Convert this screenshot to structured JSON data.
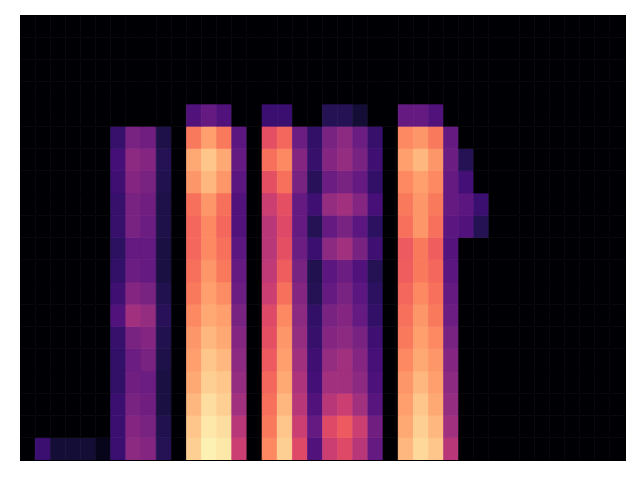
{
  "chart_data": {
    "type": "heatmap",
    "tick_labels": false,
    "color": "magma",
    "xlim": [
      0,
      40
    ],
    "ylim": [
      0,
      20
    ],
    "zlim": [
      0,
      1
    ],
    "z": [
      [
        0,
        0.2,
        0.1,
        0.1,
        0.1,
        0.05,
        0.2,
        0.4,
        0.38,
        0.15,
        0,
        0.9,
        0.97,
        0.95,
        0.55,
        0,
        0.75,
        0.9,
        0.6,
        0.25,
        0.55,
        0.6,
        0.5,
        0.3,
        0,
        0.85,
        0.92,
        0.88,
        0.5,
        0,
        0,
        0,
        0,
        0,
        0,
        0,
        0,
        0,
        0,
        0
      ],
      [
        0,
        0,
        0,
        0,
        0,
        0,
        0.2,
        0.38,
        0.35,
        0.14,
        0,
        0.88,
        0.95,
        0.93,
        0.5,
        0,
        0.72,
        0.88,
        0.55,
        0.3,
        0.6,
        0.65,
        0.55,
        0.33,
        0,
        0.82,
        0.9,
        0.85,
        0.45,
        0,
        0,
        0,
        0,
        0,
        0,
        0,
        0,
        0,
        0,
        0
      ],
      [
        0,
        0,
        0,
        0,
        0,
        0,
        0.2,
        0.35,
        0.33,
        0.12,
        0,
        0.85,
        0.93,
        0.9,
        0.45,
        0,
        0.7,
        0.85,
        0.5,
        0.25,
        0.5,
        0.55,
        0.45,
        0.27,
        0,
        0.8,
        0.88,
        0.82,
        0.42,
        0,
        0,
        0,
        0,
        0,
        0,
        0,
        0,
        0,
        0,
        0
      ],
      [
        0,
        0,
        0,
        0,
        0,
        0,
        0.18,
        0.33,
        0.32,
        0.12,
        0,
        0.82,
        0.9,
        0.88,
        0.42,
        0,
        0.68,
        0.82,
        0.48,
        0.22,
        0.45,
        0.45,
        0.4,
        0.24,
        0,
        0.78,
        0.85,
        0.8,
        0.4,
        0,
        0,
        0,
        0,
        0,
        0,
        0,
        0,
        0,
        0,
        0
      ],
      [
        0,
        0,
        0,
        0,
        0,
        0,
        0.18,
        0.32,
        0.35,
        0.13,
        0,
        0.8,
        0.88,
        0.85,
        0.4,
        0,
        0.65,
        0.8,
        0.45,
        0.21,
        0.42,
        0.45,
        0.38,
        0.23,
        0,
        0.75,
        0.82,
        0.78,
        0.38,
        0,
        0,
        0,
        0,
        0,
        0,
        0,
        0,
        0,
        0,
        0
      ],
      [
        0,
        0,
        0,
        0,
        0,
        0,
        0.19,
        0.35,
        0.38,
        0.14,
        0,
        0.78,
        0.85,
        0.82,
        0.38,
        0,
        0.62,
        0.78,
        0.42,
        0.19,
        0.38,
        0.4,
        0.35,
        0.21,
        0,
        0.72,
        0.8,
        0.75,
        0.35,
        0,
        0,
        0,
        0,
        0,
        0,
        0,
        0,
        0,
        0,
        0
      ],
      [
        0,
        0,
        0,
        0,
        0,
        0,
        0.25,
        0.45,
        0.42,
        0.16,
        0,
        0.75,
        0.82,
        0.8,
        0.35,
        0,
        0.6,
        0.75,
        0.4,
        0.18,
        0.35,
        0.38,
        0.3,
        0.18,
        0,
        0.7,
        0.78,
        0.72,
        0.32,
        0,
        0,
        0,
        0,
        0,
        0,
        0,
        0,
        0,
        0,
        0
      ],
      [
        0,
        0,
        0,
        0,
        0,
        0,
        0.21,
        0.38,
        0.35,
        0.14,
        0,
        0.72,
        0.8,
        0.76,
        0.32,
        0,
        0.55,
        0.7,
        0.38,
        0.15,
        0.3,
        0.35,
        0.28,
        0.17,
        0,
        0.68,
        0.75,
        0.7,
        0.3,
        0,
        0,
        0,
        0,
        0,
        0,
        0,
        0,
        0,
        0,
        0
      ],
      [
        0,
        0,
        0,
        0,
        0,
        0,
        0.18,
        0.32,
        0.3,
        0.12,
        0,
        0.7,
        0.78,
        0.72,
        0.3,
        0,
        0.52,
        0.66,
        0.35,
        0.14,
        0.28,
        0.32,
        0.25,
        0.15,
        0,
        0.66,
        0.72,
        0.68,
        0.28,
        0,
        0,
        0,
        0,
        0,
        0,
        0,
        0,
        0,
        0,
        0
      ],
      [
        0,
        0,
        0,
        0,
        0,
        0,
        0.17,
        0.3,
        0.3,
        0.12,
        0,
        0.68,
        0.75,
        0.7,
        0.28,
        0,
        0.5,
        0.62,
        0.32,
        0.2,
        0.4,
        0.45,
        0.35,
        0.21,
        0,
        0.65,
        0.72,
        0.66,
        0.26,
        0,
        0,
        0,
        0,
        0,
        0,
        0,
        0,
        0,
        0,
        0
      ],
      [
        0,
        0,
        0,
        0,
        0,
        0,
        0.19,
        0.35,
        0.32,
        0.13,
        0,
        0.68,
        0.75,
        0.68,
        0.25,
        0,
        0.5,
        0.6,
        0.3,
        0.15,
        0.3,
        0.35,
        0.28,
        0.17,
        0,
        0.7,
        0.78,
        0.7,
        0.28,
        0.25,
        0.15,
        0,
        0,
        0,
        0,
        0,
        0,
        0,
        0,
        0
      ],
      [
        0,
        0,
        0,
        0,
        0,
        0,
        0.19,
        0.35,
        0.33,
        0.13,
        0,
        0.7,
        0.78,
        0.7,
        0.25,
        0,
        0.55,
        0.62,
        0.3,
        0.21,
        0.42,
        0.45,
        0.38,
        0.23,
        0,
        0.72,
        0.78,
        0.72,
        0.3,
        0.28,
        0.2,
        0,
        0,
        0,
        0,
        0,
        0,
        0,
        0,
        0
      ],
      [
        0,
        0,
        0,
        0,
        0,
        0,
        0.21,
        0.38,
        0.35,
        0.14,
        0,
        0.78,
        0.85,
        0.78,
        0.28,
        0,
        0.62,
        0.7,
        0.35,
        0.16,
        0.32,
        0.35,
        0.3,
        0.18,
        0,
        0.75,
        0.8,
        0.75,
        0.3,
        0.22,
        0,
        0,
        0,
        0,
        0,
        0,
        0,
        0,
        0,
        0
      ],
      [
        0,
        0,
        0,
        0,
        0,
        0,
        0.22,
        0.4,
        0.38,
        0.15,
        0,
        0.82,
        0.88,
        0.82,
        0.3,
        0,
        0.7,
        0.75,
        0.38,
        0.19,
        0.38,
        0.42,
        0.35,
        0.21,
        0,
        0.8,
        0.85,
        0.78,
        0.32,
        0.15,
        0,
        0,
        0,
        0,
        0,
        0,
        0,
        0,
        0,
        0
      ],
      [
        0,
        0,
        0,
        0,
        0,
        0,
        0.19,
        0.35,
        0.33,
        0.13,
        0,
        0.72,
        0.8,
        0.72,
        0.28,
        0,
        0.62,
        0.68,
        0.32,
        0.18,
        0.35,
        0.4,
        0.32,
        0.19,
        0,
        0.75,
        0.78,
        0.72,
        0.3,
        0,
        0,
        0,
        0,
        0,
        0,
        0,
        0,
        0,
        0,
        0
      ],
      [
        0,
        0,
        0,
        0,
        0,
        0,
        0,
        0,
        0,
        0,
        0,
        0.25,
        0.3,
        0.25,
        0,
        0,
        0.2,
        0.2,
        0,
        0,
        0.15,
        0.15,
        0.1,
        0,
        0,
        0.3,
        0.3,
        0.25,
        0,
        0,
        0,
        0,
        0,
        0,
        0,
        0,
        0,
        0,
        0,
        0
      ],
      [
        0,
        0,
        0,
        0,
        0,
        0,
        0,
        0,
        0,
        0,
        0,
        0,
        0,
        0,
        0,
        0,
        0,
        0,
        0,
        0,
        0,
        0,
        0,
        0,
        0,
        0,
        0,
        0,
        0,
        0,
        0,
        0,
        0,
        0,
        0,
        0,
        0,
        0,
        0,
        0
      ],
      [
        0,
        0,
        0,
        0,
        0,
        0,
        0,
        0,
        0,
        0,
        0,
        0,
        0,
        0,
        0,
        0,
        0,
        0,
        0,
        0,
        0,
        0,
        0,
        0,
        0,
        0,
        0,
        0,
        0,
        0,
        0,
        0,
        0,
        0,
        0,
        0,
        0,
        0,
        0,
        0
      ],
      [
        0,
        0,
        0,
        0,
        0,
        0,
        0,
        0,
        0,
        0,
        0,
        0,
        0,
        0,
        0,
        0,
        0,
        0,
        0,
        0,
        0,
        0,
        0,
        0,
        0,
        0,
        0,
        0,
        0,
        0,
        0,
        0,
        0,
        0,
        0,
        0,
        0,
        0,
        0,
        0
      ],
      [
        0,
        0,
        0,
        0,
        0,
        0,
        0,
        0,
        0,
        0,
        0,
        0,
        0,
        0,
        0,
        0,
        0,
        0,
        0,
        0,
        0,
        0,
        0,
        0,
        0,
        0,
        0,
        0,
        0,
        0,
        0,
        0,
        0,
        0,
        0,
        0,
        0,
        0,
        0,
        0
      ]
    ]
  }
}
